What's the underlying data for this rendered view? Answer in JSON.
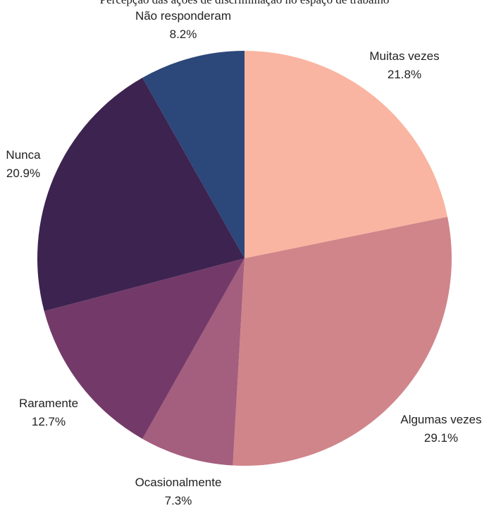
{
  "chart_data": {
    "type": "pie",
    "title": "Percepção das ações de discriminação no espaço de trabalho",
    "start": "top",
    "direction": "clockwise",
    "slices": [
      {
        "label": "Muitas vezes",
        "pct_label": "21.8%",
        "value": 21.8,
        "color": "#F9B5A1"
      },
      {
        "label": "Algumas vezes",
        "pct_label": "29.1%",
        "value": 29.1,
        "color": "#D0858A"
      },
      {
        "label": "Ocasionalmente",
        "pct_label": "7.3%",
        "value": 7.3,
        "color": "#A45E7E"
      },
      {
        "label": "Raramente",
        "pct_label": "12.7%",
        "value": 12.7,
        "color": "#733A69"
      },
      {
        "label": "Nunca",
        "pct_label": "20.9%",
        "value": 20.9,
        "color": "#3D2350"
      },
      {
        "label": "Não responderam",
        "pct_label": "8.2%",
        "value": 8.2,
        "color": "#2C477A"
      }
    ]
  }
}
